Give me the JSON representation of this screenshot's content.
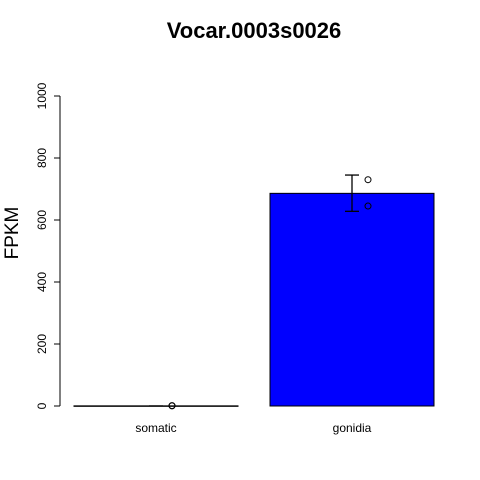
{
  "chart_data": {
    "type": "bar",
    "title": "Vocar.0003s0026",
    "xlabel": "",
    "ylabel": "FPKM",
    "ylim": [
      0,
      1000
    ],
    "yticks": [
      0,
      200,
      400,
      600,
      800,
      1000
    ],
    "categories": [
      "somatic",
      "gonidia"
    ],
    "values": [
      0.5,
      686
    ],
    "error_low": [
      0.5,
      628
    ],
    "error_high": [
      0.5,
      745
    ],
    "points": [
      [
        1.2,
        0.3
      ],
      [
        730,
        645
      ]
    ],
    "bar_colors": [
      "#8b0000",
      "#0000ff"
    ],
    "grid": false,
    "legend": "none"
  }
}
